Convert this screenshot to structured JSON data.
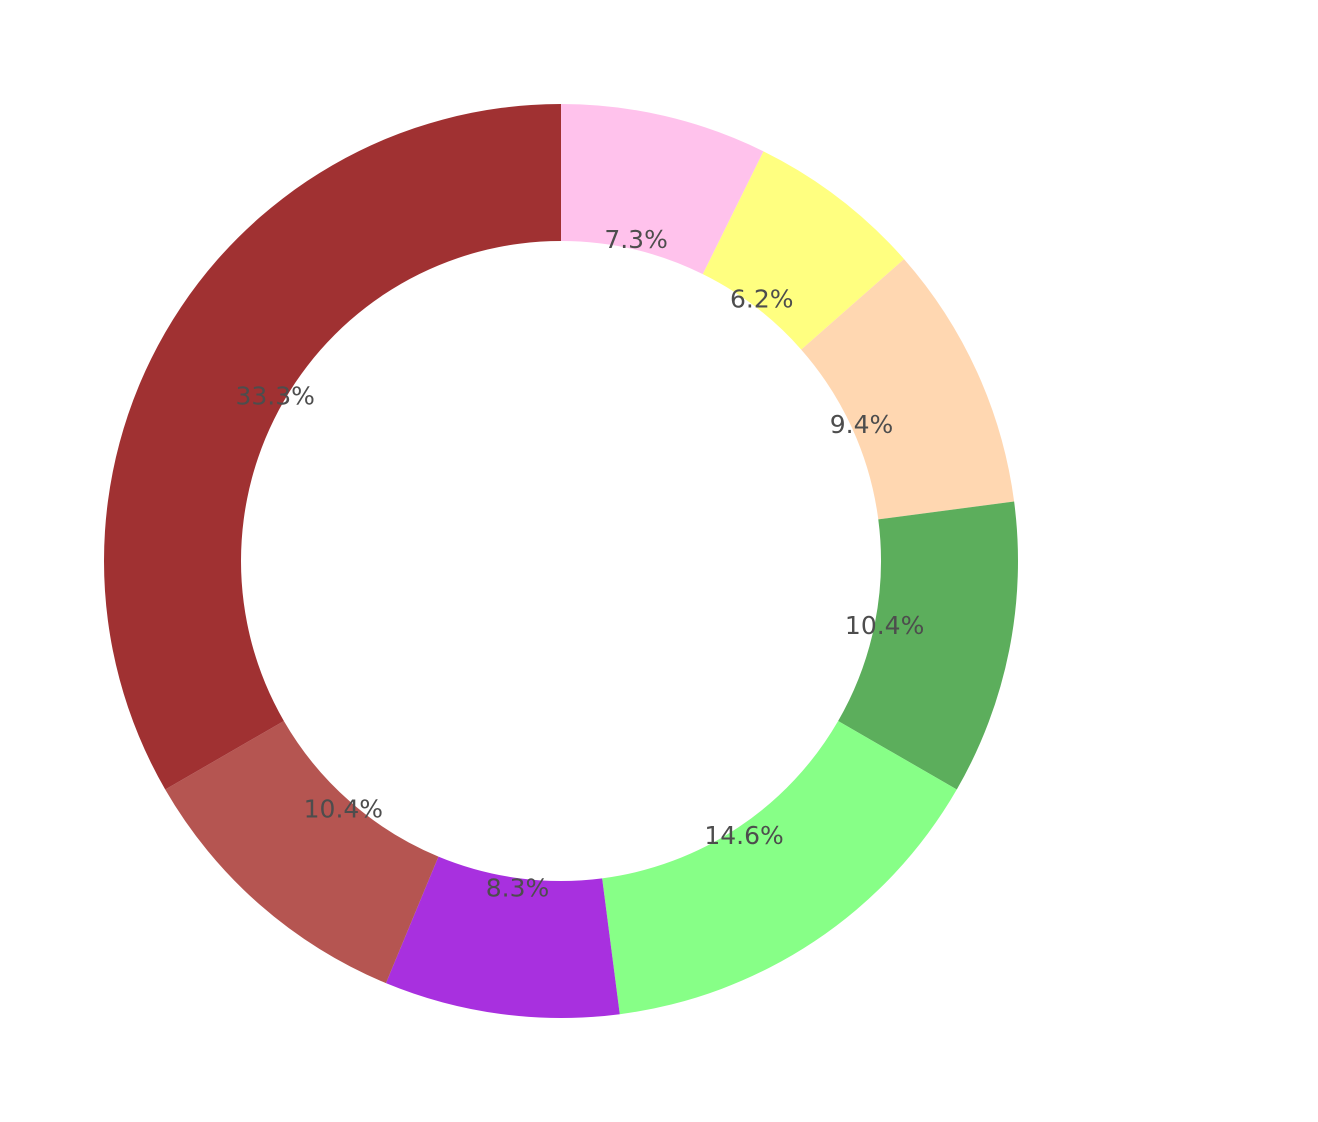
{
  "chart_data": {
    "type": "pie",
    "variant": "donut",
    "title": "",
    "start_angle_deg": 90,
    "direction": "clockwise",
    "legend": "none",
    "slices": [
      {
        "label": "7.3%",
        "value": 7.3,
        "color": "#ffc2ec"
      },
      {
        "label": "6.2%",
        "value": 6.2,
        "color": "#ffff80"
      },
      {
        "label": "9.4%",
        "value": 9.4,
        "color": "#ffd7b1"
      },
      {
        "label": "10.4%",
        "value": 10.4,
        "color": "#5cae5c"
      },
      {
        "label": "14.6%",
        "value": 14.6,
        "color": "#87ff87"
      },
      {
        "label": "8.3%",
        "value": 8.3,
        "color": "#a830df"
      },
      {
        "label": "10.4%",
        "value": 10.4,
        "color": "#b55551"
      },
      {
        "label": "33.3%",
        "value": 33.3,
        "color": "#a03132"
      }
    ]
  }
}
